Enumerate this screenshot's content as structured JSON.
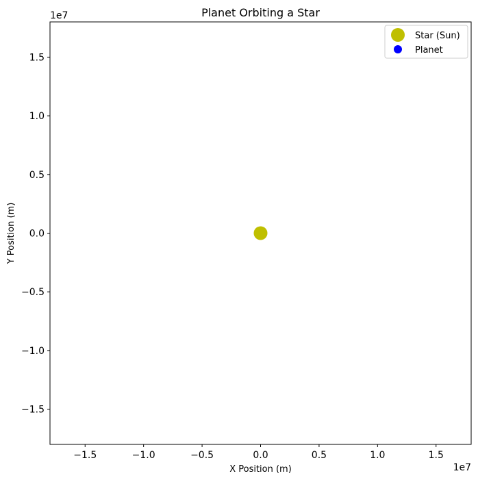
{
  "chart_data": {
    "type": "scatter",
    "title": "Planet Orbiting a Star",
    "xlabel": "X Position (m)",
    "ylabel": "Y Position (m)",
    "xlim": [
      -18000000,
      18000000
    ],
    "ylim": [
      -18000000,
      18000000
    ],
    "x_offset_label": "1e7",
    "y_offset_label": "1e7",
    "x_ticks": [
      -15000000,
      -10000000,
      -5000000,
      0,
      5000000,
      10000000,
      15000000
    ],
    "x_tick_labels": [
      "−1.5",
      "−1.0",
      "−0.5",
      "0.0",
      "0.5",
      "1.0",
      "1.5"
    ],
    "y_ticks": [
      -15000000,
      -10000000,
      -5000000,
      0,
      5000000,
      10000000,
      15000000
    ],
    "y_tick_labels": [
      "−1.5",
      "−1.0",
      "−0.5",
      "0.0",
      "0.5",
      "1.0",
      "1.5"
    ],
    "grid": false,
    "legend_position": "top-right",
    "series": [
      {
        "name": "Star (Sun)",
        "color": "#bfbf00",
        "marker": "large-circle",
        "points": [
          {
            "x": 0,
            "y": 0
          }
        ]
      },
      {
        "name": "Planet",
        "color": "#0000ff",
        "marker": "circle",
        "points": []
      }
    ]
  }
}
